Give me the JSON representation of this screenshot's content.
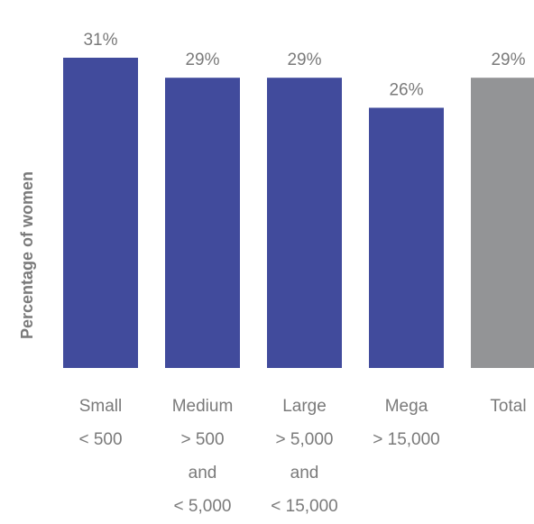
{
  "chart_data": {
    "type": "bar",
    "title": "",
    "xlabel": "",
    "ylabel": "Percentage of women",
    "ylim": [
      0,
      32
    ],
    "grid": false,
    "legend": "none",
    "categories": [
      {
        "lines": [
          "Small",
          "< 500"
        ]
      },
      {
        "lines": [
          "Medium",
          "> 500",
          "and",
          "< 5,000"
        ]
      },
      {
        "lines": [
          "Large",
          "> 5,000",
          "and",
          "< 15,000"
        ]
      },
      {
        "lines": [
          "Mega",
          "> 15,000"
        ]
      },
      {
        "lines": [
          "Total"
        ]
      }
    ],
    "values": [
      31,
      29,
      29,
      26,
      29
    ],
    "value_labels": [
      "31%",
      "29%",
      "29%",
      "26%",
      "29%"
    ],
    "colors": [
      "#414b9c",
      "#414b9c",
      "#414b9c",
      "#414b9c",
      "#939496"
    ],
    "label_color": "#7a7a7a"
  }
}
